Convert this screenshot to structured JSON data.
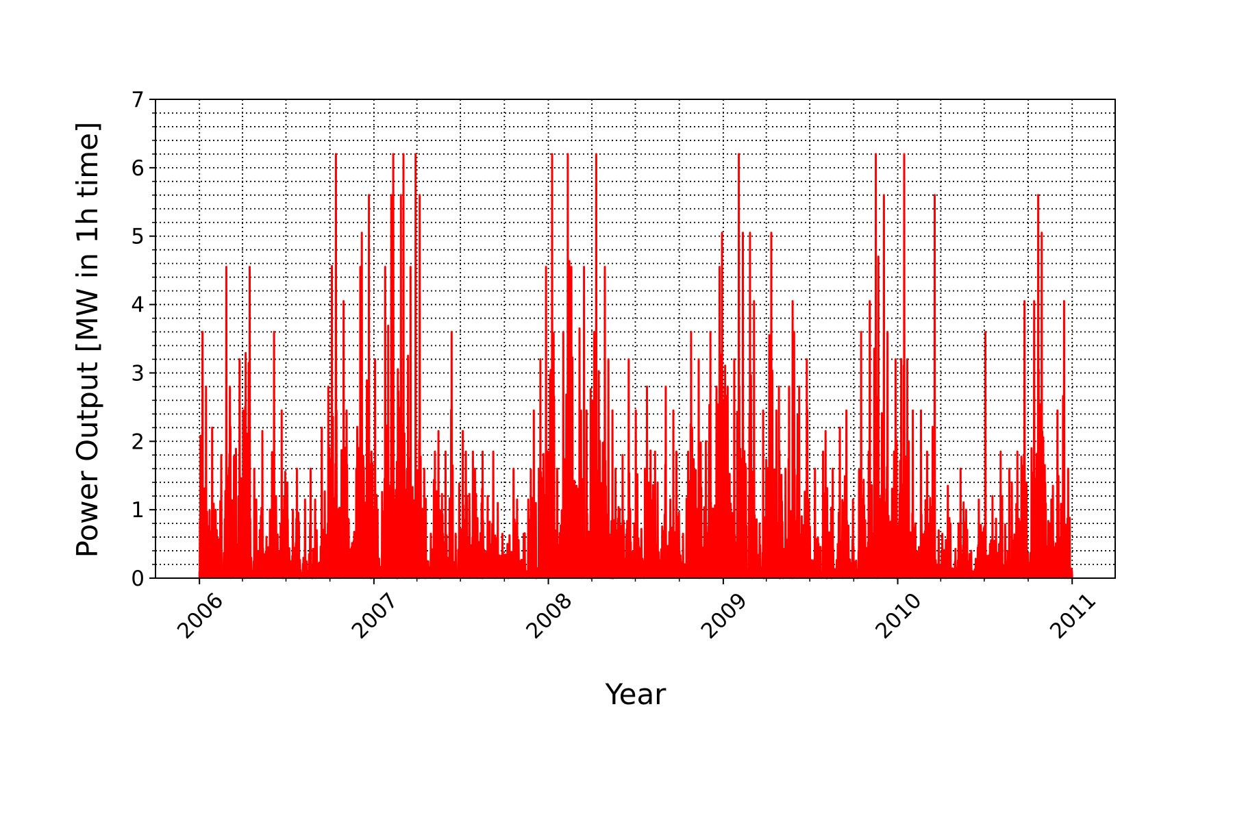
{
  "chart_data": {
    "type": "line",
    "title": "",
    "xlabel": "Year",
    "ylabel": "Power Output [MW in 1h time]",
    "x_ticks": [
      "2006",
      "2007",
      "2008",
      "2009",
      "2010",
      "2011"
    ],
    "y_ticks": [
      "0",
      "1",
      "2",
      "3",
      "4",
      "5",
      "6",
      "7"
    ],
    "xlim": [
      "2005-10-01",
      "2011-04-01"
    ],
    "ylim": [
      0,
      7
    ],
    "grid": true,
    "grid_style": "dotted, major and minor",
    "legend": "none",
    "x_sampling": "semi-monthly",
    "series": [
      {
        "color": "#ff0000",
        "x_start": "2006-01-01",
        "x_end": "2011-01-01",
        "peaks": [
          3.6,
          2.8,
          2.2,
          1.0,
          1.8,
          4.55,
          2.8,
          3.2,
          2.45,
          4.55,
          1.6,
          1.15,
          2.15,
          1.0,
          3.6,
          1.2,
          2.45,
          1.4,
          1.0,
          1.6,
          1.15,
          1.6,
          1.15,
          0.7,
          2.2,
          2.8,
          6.2,
          2.45,
          4.05,
          2.45,
          1.6,
          4.55,
          5.05,
          5.6,
          3.2,
          1.0,
          4.55,
          5.6,
          6.2,
          5.6,
          6.2,
          4.55,
          6.2,
          5.6,
          1.6,
          0.65,
          1.85,
          2.15,
          1.85,
          3.6,
          0.65,
          2.15,
          1.85,
          1.85,
          1.6,
          1.85,
          1.2,
          1.85,
          1.1,
          0.65,
          0.5,
          1.6,
          1.15,
          0.65,
          1.15,
          2.45,
          1.6,
          3.2,
          4.55,
          6.2,
          1.6,
          3.6,
          6.2,
          4.55,
          3.65,
          4.55,
          2.45,
          3.6,
          6.2,
          4.55,
          3.2,
          2.45,
          1.6,
          1.8,
          3.2,
          0.8,
          2.45,
          1.6,
          2.8,
          1.85,
          1.4,
          2.8,
          1.15,
          2.45,
          1.85,
          0.65,
          3.6,
          2.2,
          3.2,
          2.0,
          3.6,
          2.8,
          4.55,
          5.05,
          2.8,
          3.2,
          6.2,
          5.05,
          5.05,
          4.05,
          0.8,
          2.45,
          5.05,
          2.45,
          2.8,
          1.6,
          4.05,
          3.6,
          2.8,
          3.2,
          1.15,
          1.6,
          1.85,
          2.15,
          1.6,
          0.5,
          2.2,
          2.45,
          1.15,
          0.4,
          3.6,
          1.85,
          4.05,
          6.2,
          5.6,
          3.6,
          1.85,
          3.2,
          6.2,
          3.2,
          2.45,
          0.8,
          2.45,
          1.85,
          5.6,
          0.7,
          0.65,
          1.35,
          0.8,
          0.8,
          1.6,
          1.0,
          0.4,
          1.15,
          3.6,
          0.5,
          1.2,
          1.85,
          1.2,
          1.6,
          1.4,
          1.85,
          4.05,
          1.4,
          4.05,
          5.6,
          5.05,
          1.15,
          1.35,
          2.45,
          4.05,
          1.6
        ]
      }
    ]
  }
}
